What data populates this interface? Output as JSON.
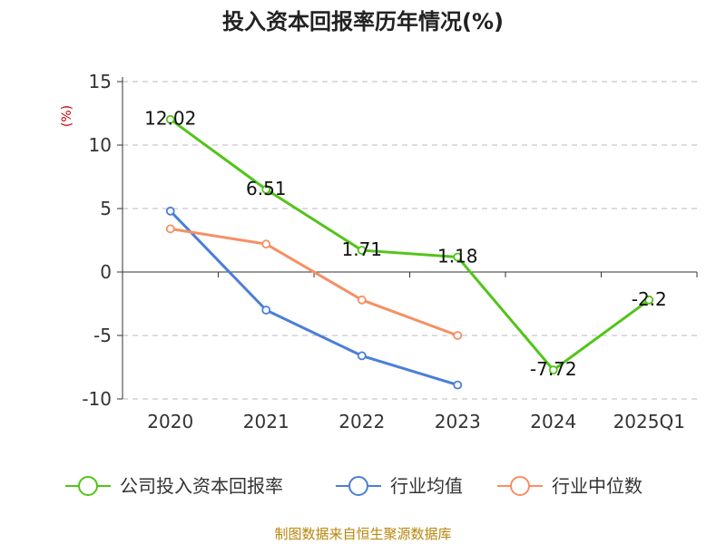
{
  "chart_data": {
    "type": "line",
    "title": "投入资本回报率历年情况(%)",
    "unit_label": "(%)",
    "categories": [
      "2020",
      "2021",
      "2022",
      "2023",
      "2024",
      "2025Q1"
    ],
    "yticks": [
      "15",
      "10",
      "5",
      "0",
      "-5",
      "-10"
    ],
    "ylim": [
      -10,
      15
    ],
    "grid": true,
    "legend_position": "bottom",
    "series": [
      {
        "name": "公司投入资本回报率",
        "color": "#52c41a",
        "values": [
          12.02,
          6.51,
          1.71,
          1.18,
          -7.72,
          -2.2
        ],
        "labels": [
          "12.02",
          "6.51",
          "1.71",
          "1.18",
          "-7.72",
          "-2.2"
        ]
      },
      {
        "name": "行业均值",
        "color": "#4a7fd8",
        "values": [
          4.8,
          -3.0,
          -6.6,
          -8.9,
          null,
          null
        ],
        "labels": []
      },
      {
        "name": "行业中位数",
        "color": "#f59064",
        "values": [
          3.4,
          2.2,
          -2.2,
          -5.0,
          null,
          null
        ],
        "labels": []
      }
    ],
    "source": "制图数据来自恒生聚源数据库"
  }
}
